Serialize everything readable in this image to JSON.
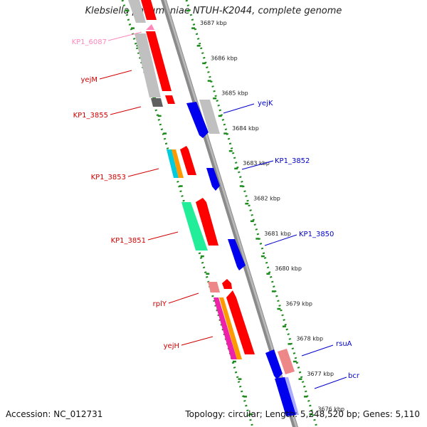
{
  "title": "Klebsiella pneumoniae NTUH-K2044, complete genome",
  "footer": {
    "accession": "Accession: NC_012731",
    "summary": "Topology: circular; Length: 5,248,520 bp; Genes: 5,110"
  },
  "colors": {
    "forward_label": "#d00000",
    "reverse_label": "#0000cc",
    "pink_label": "#ff88bb",
    "backbone": "#8a8a8a",
    "tick": "#1a8a1a"
  },
  "ticks": [
    "3687 kbp",
    "3686 kbp",
    "3685 kbp",
    "3684 kbp",
    "3683 kbp",
    "3682 kbp",
    "3681 kbp",
    "3680 kbp",
    "3679 kbp",
    "3678 kbp",
    "3677 kbp",
    "3676 kbp"
  ],
  "gene_labels_left": [
    {
      "text": "KP1_6087",
      "color": "pink"
    },
    {
      "text": "yejM",
      "color": "red"
    },
    {
      "text": "KP1_3855",
      "color": "red"
    },
    {
      "text": "KP1_3853",
      "color": "red"
    },
    {
      "text": "KP1_3851",
      "color": "red"
    },
    {
      "text": "rplY",
      "color": "red"
    },
    {
      "text": "yejH",
      "color": "red"
    }
  ],
  "gene_labels_right": [
    {
      "text": "yejK",
      "color": "blue"
    },
    {
      "text": "KP1_3852",
      "color": "blue"
    },
    {
      "text": "KP1_3850",
      "color": "blue"
    },
    {
      "text": "rsuA",
      "color": "blue"
    },
    {
      "text": "bcr",
      "color": "blue"
    }
  ]
}
